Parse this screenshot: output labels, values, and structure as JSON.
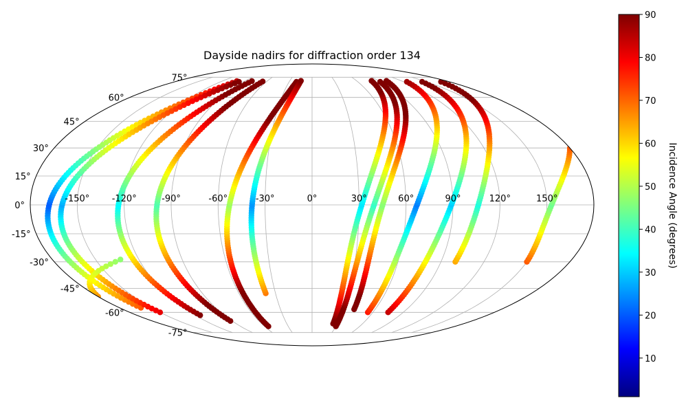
{
  "chart_data": {
    "type": "scatter",
    "projection": "mollweide",
    "title": "Dayside nadirs for diffraction order 134",
    "xlabel": "",
    "ylabel": "",
    "lon_ticks": [
      "-150°",
      "-120°",
      "-90°",
      "-60°",
      "-30°",
      "0°",
      "30°",
      "60°",
      "90°",
      "120°",
      "150°"
    ],
    "lat_ticks": [
      "75°",
      "60°",
      "45°",
      "30°",
      "15°",
      "0°",
      "-15°",
      "-30°",
      "-45°",
      "-60°",
      "-75°"
    ],
    "grid": true,
    "colorbar": {
      "label": "Incidence Angle (degrees)",
      "colormap": "jet",
      "range": [
        1,
        90
      ],
      "ticks": [
        "10",
        "20",
        "30",
        "40",
        "50",
        "60",
        "70",
        "80",
        "90"
      ]
    },
    "series": [
      {
        "lon_min": -160,
        "lon_max": -100,
        "amplitude": 35,
        "lat_range": [
          -57,
          72
        ]
      },
      {
        "lon_min": -150,
        "lon_max": -95,
        "amplitude": 35,
        "lat_range": [
          -60,
          72
        ]
      },
      {
        "lon_min": -115,
        "lon_max": -80,
        "amplitude": 25,
        "lat_range": [
          -62,
          72
        ]
      },
      {
        "lon_min": -92,
        "lon_max": -65,
        "amplitude": 20,
        "lat_range": [
          -66,
          72
        ]
      },
      {
        "lon_min": -55,
        "lon_max": -20,
        "amplitude": 15,
        "lat_range": [
          -70,
          72
        ]
      },
      {
        "lon_min": -38,
        "lon_max": -15,
        "amplitude": 10,
        "lat_range": [
          -48,
          72
        ]
      },
      {
        "lon_min": 25,
        "lon_max": 80,
        "amplitude": 20,
        "lat_range": [
          -68,
          72
        ]
      },
      {
        "lon_min": 30,
        "lon_max": 90,
        "amplitude": 20,
        "lat_range": [
          -70,
          72
        ]
      },
      {
        "lon_min": 40,
        "lon_max": 100,
        "amplitude": 22,
        "lat_range": [
          -58,
          72
        ]
      },
      {
        "lon_min": 55,
        "lon_max": 125,
        "amplitude": 20,
        "lat_range": [
          -60,
          72
        ]
      },
      {
        "lon_min": 75,
        "lon_max": 145,
        "amplitude": 18,
        "lat_range": [
          -60,
          72
        ]
      },
      {
        "lon_min": 100,
        "lon_max": 170,
        "amplitude": 18,
        "lat_range": [
          -30,
          72
        ]
      },
      {
        "lon_min": 150,
        "lon_max": 180,
        "amplitude": 12,
        "lat_range": [
          -30,
          30
        ]
      },
      {
        "lon_min": -180,
        "lon_max": -130,
        "amplitude": 10,
        "lat_range": [
          -50,
          -28
        ]
      }
    ]
  }
}
